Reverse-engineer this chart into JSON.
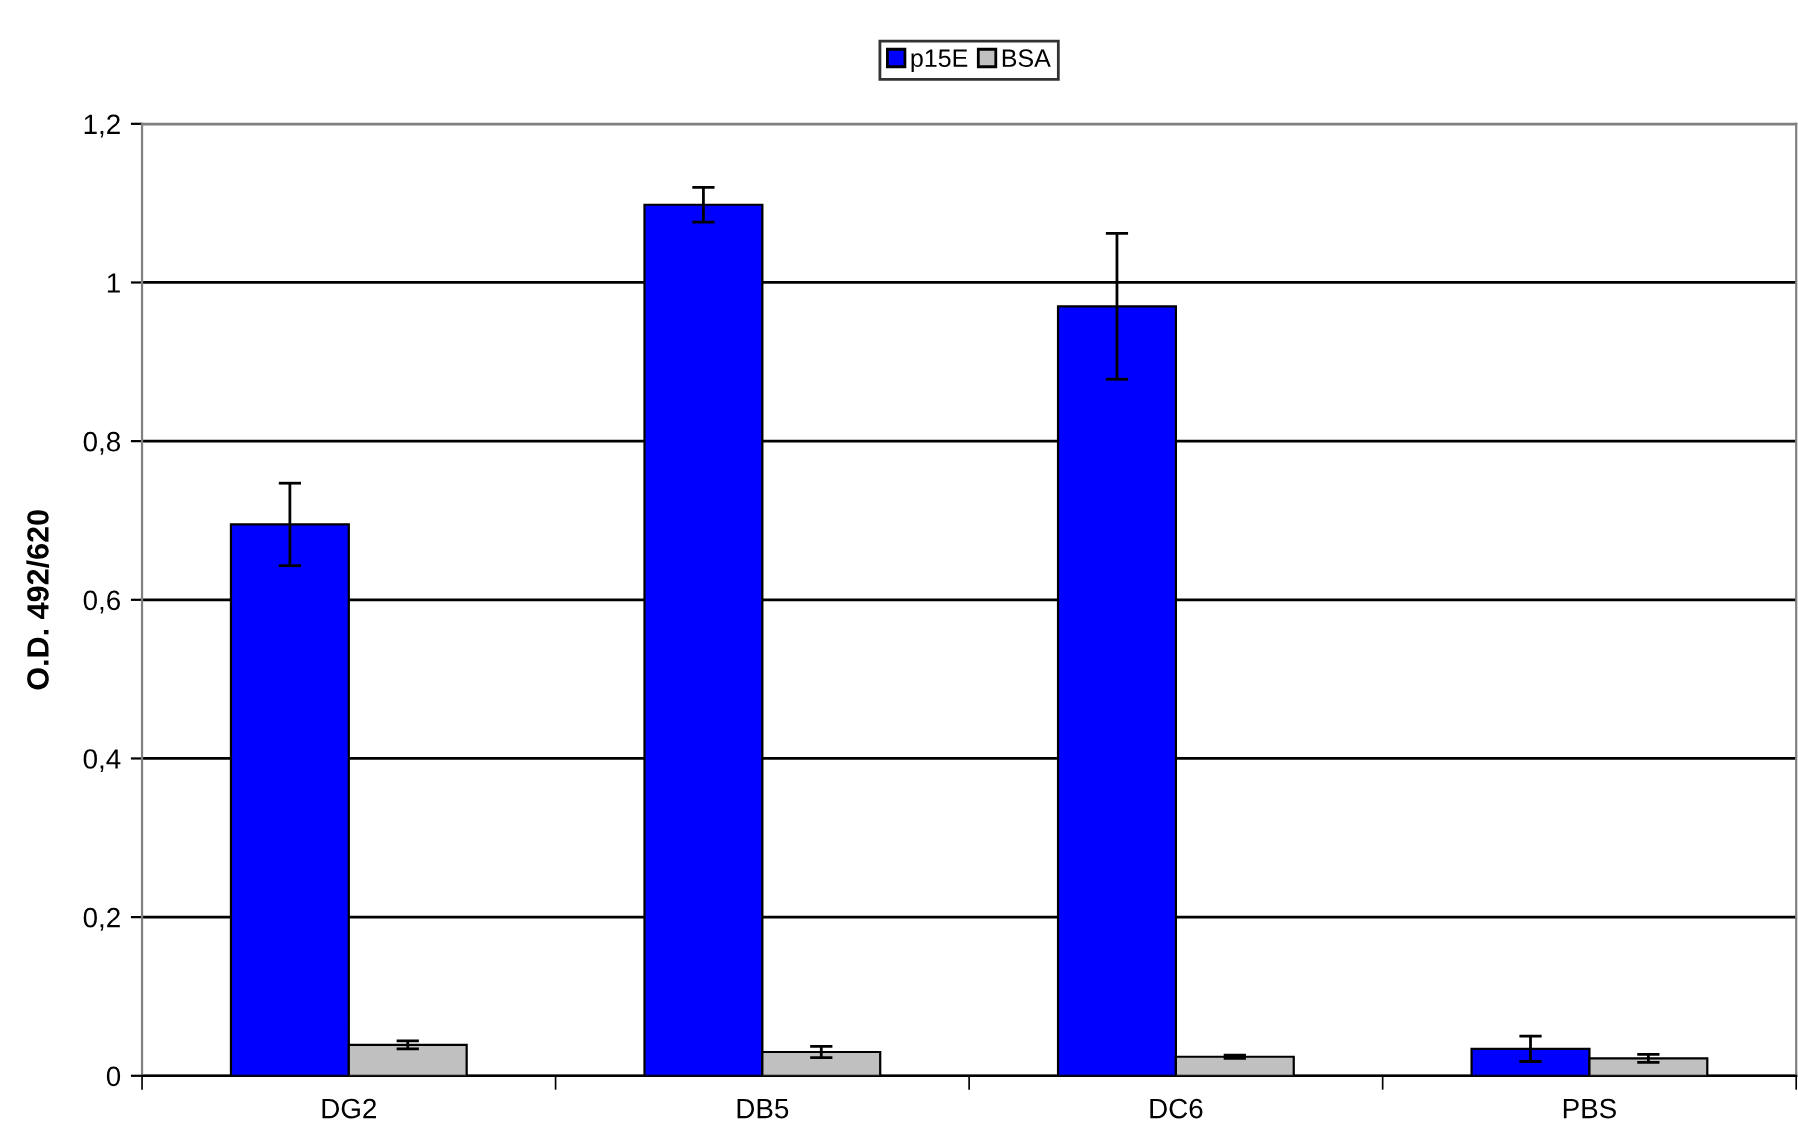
{
  "chart_data": {
    "type": "bar",
    "ylabel": "O.D. 492/620",
    "categories": [
      "DG2",
      "DB5",
      "DC6",
      "PBS"
    ],
    "series": [
      {
        "name": "p15E",
        "color": "#0000ff",
        "values": [
          0.695,
          1.098,
          0.97,
          0.034
        ],
        "errors": [
          0.052,
          0.022,
          0.092,
          0.016
        ]
      },
      {
        "name": "BSA",
        "color": "#c0c0c0",
        "values": [
          0.039,
          0.03,
          0.024,
          0.022
        ],
        "errors": [
          0.005,
          0.007,
          0.002,
          0.005
        ]
      }
    ],
    "ylim": [
      0,
      1.2
    ],
    "yticks": [
      0,
      {
        "value": 0.2,
        "label": "0,2"
      },
      {
        "value": 0.4,
        "label": "0,4"
      },
      {
        "value": 0.6,
        "label": "0,6"
      },
      {
        "value": 0.8,
        "label": "0,8"
      },
      1,
      {
        "value": 1.2,
        "label": "1,2"
      }
    ],
    "grid": "y",
    "legend": "top"
  }
}
